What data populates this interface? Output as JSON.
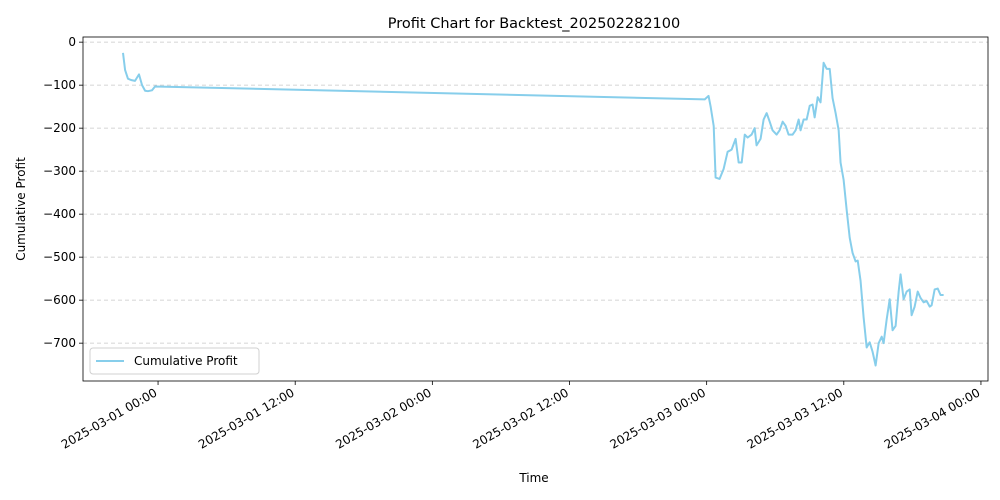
{
  "chart_data": {
    "type": "line",
    "title": "Profit Chart for Backtest_202502282100",
    "xlabel": "Time",
    "ylabel": "Cumulative Profit",
    "x": [
      "2025-02-28 20:56",
      "2025-02-28 21:07",
      "2025-02-28 21:22",
      "2025-02-28 21:38",
      "2025-02-28 21:59",
      "2025-02-28 22:20",
      "2025-02-28 22:36",
      "2025-02-28 22:52",
      "2025-02-28 23:07",
      "2025-02-28 23:28",
      "2025-02-28 23:44",
      "2025-03-02 23:50",
      "2025-03-03 00:10",
      "2025-03-03 00:21",
      "2025-03-03 00:37",
      "2025-03-03 00:47",
      "2025-03-03 01:08",
      "2025-03-03 01:29",
      "2025-03-03 01:50",
      "2025-03-03 02:11",
      "2025-03-03 02:32",
      "2025-03-03 02:48",
      "2025-03-03 03:04",
      "2025-03-03 03:20",
      "2025-03-03 03:35",
      "2025-03-03 03:56",
      "2025-03-03 04:12",
      "2025-03-03 04:22",
      "2025-03-03 04:43",
      "2025-03-03 04:59",
      "2025-03-03 05:15",
      "2025-03-03 05:31",
      "2025-03-03 05:46",
      "2025-03-03 06:07",
      "2025-03-03 06:23",
      "2025-03-03 06:39",
      "2025-03-03 06:55",
      "2025-03-03 07:10",
      "2025-03-03 07:31",
      "2025-03-03 07:47",
      "2025-03-03 08:03",
      "2025-03-03 08:13",
      "2025-03-03 08:29",
      "2025-03-03 08:45",
      "2025-03-03 09:01",
      "2025-03-03 09:16",
      "2025-03-03 09:27",
      "2025-03-03 09:43",
      "2025-03-03 09:58",
      "2025-03-03 10:14",
      "2025-03-03 10:30",
      "2025-03-03 10:46",
      "2025-03-03 11:01",
      "2025-03-03 11:17",
      "2025-03-03 11:33",
      "2025-03-03 11:43",
      "2025-03-03 11:59",
      "2025-03-03 12:15",
      "2025-03-03 12:31",
      "2025-03-03 12:46",
      "2025-03-03 13:02",
      "2025-03-03 13:13",
      "2025-03-03 13:28",
      "2025-03-03 13:44",
      "2025-03-03 14:00",
      "2025-03-03 14:16",
      "2025-03-03 14:31",
      "2025-03-03 14:47",
      "2025-03-03 15:03",
      "2025-03-03 15:19",
      "2025-03-03 15:29",
      "2025-03-03 15:45",
      "2025-03-03 16:01",
      "2025-03-03 16:16",
      "2025-03-03 16:32",
      "2025-03-03 16:48",
      "2025-03-03 16:58",
      "2025-03-03 17:14",
      "2025-03-03 17:30",
      "2025-03-03 17:46",
      "2025-03-03 17:56",
      "2025-03-03 18:12",
      "2025-03-03 18:28",
      "2025-03-03 18:43",
      "2025-03-03 18:59",
      "2025-03-03 19:15",
      "2025-03-03 19:31",
      "2025-03-03 19:41",
      "2025-03-03 19:57",
      "2025-03-03 20:13",
      "2025-03-03 20:28",
      "2025-03-03 20:44"
    ],
    "series": [
      {
        "name": "Cumulative Profit",
        "color": "#87ceeb",
        "values": [
          -25,
          -65,
          -85,
          -88,
          -90,
          -75,
          -100,
          -113,
          -114,
          -112,
          -103,
          -133,
          -125,
          -150,
          -195,
          -315,
          -318,
          -295,
          -255,
          -250,
          -225,
          -280,
          -280,
          -215,
          -222,
          -215,
          -200,
          -240,
          -225,
          -180,
          -165,
          -185,
          -205,
          -215,
          -205,
          -185,
          -195,
          -215,
          -215,
          -205,
          -180,
          -205,
          -180,
          -180,
          -148,
          -145,
          -175,
          -128,
          -140,
          -48,
          -62,
          -62,
          -130,
          -165,
          -205,
          -280,
          -320,
          -390,
          -455,
          -490,
          -510,
          -508,
          -555,
          -640,
          -710,
          -698,
          -720,
          -752,
          -700,
          -685,
          -700,
          -645,
          -598,
          -670,
          -660,
          -580,
          -540,
          -598,
          -580,
          -575,
          -635,
          -615,
          -580,
          -595,
          -605,
          -602,
          -615,
          -612,
          -575,
          -573,
          -588,
          -588
        ]
      }
    ],
    "xlim": [
      "2025-02-28 17:26",
      "2025-03-04 00:37"
    ],
    "xticks": [
      "2025-03-01 00:00",
      "2025-03-01 12:00",
      "2025-03-02 00:00",
      "2025-03-02 12:00",
      "2025-03-03 00:00",
      "2025-03-03 12:00",
      "2025-03-04 00:00"
    ],
    "ylim": [
      -788,
      12
    ],
    "yticks": [
      0,
      {
        "value": -100,
        "label": "−100"
      },
      {
        "value": -200,
        "label": "−200"
      },
      {
        "value": -300,
        "label": "−300"
      },
      {
        "value": -400,
        "label": "−400"
      },
      {
        "value": -500,
        "label": "−500"
      },
      {
        "value": -600,
        "label": "−600"
      },
      {
        "value": -700,
        "label": "−700"
      }
    ],
    "grid": "y",
    "legend": "lower left"
  }
}
